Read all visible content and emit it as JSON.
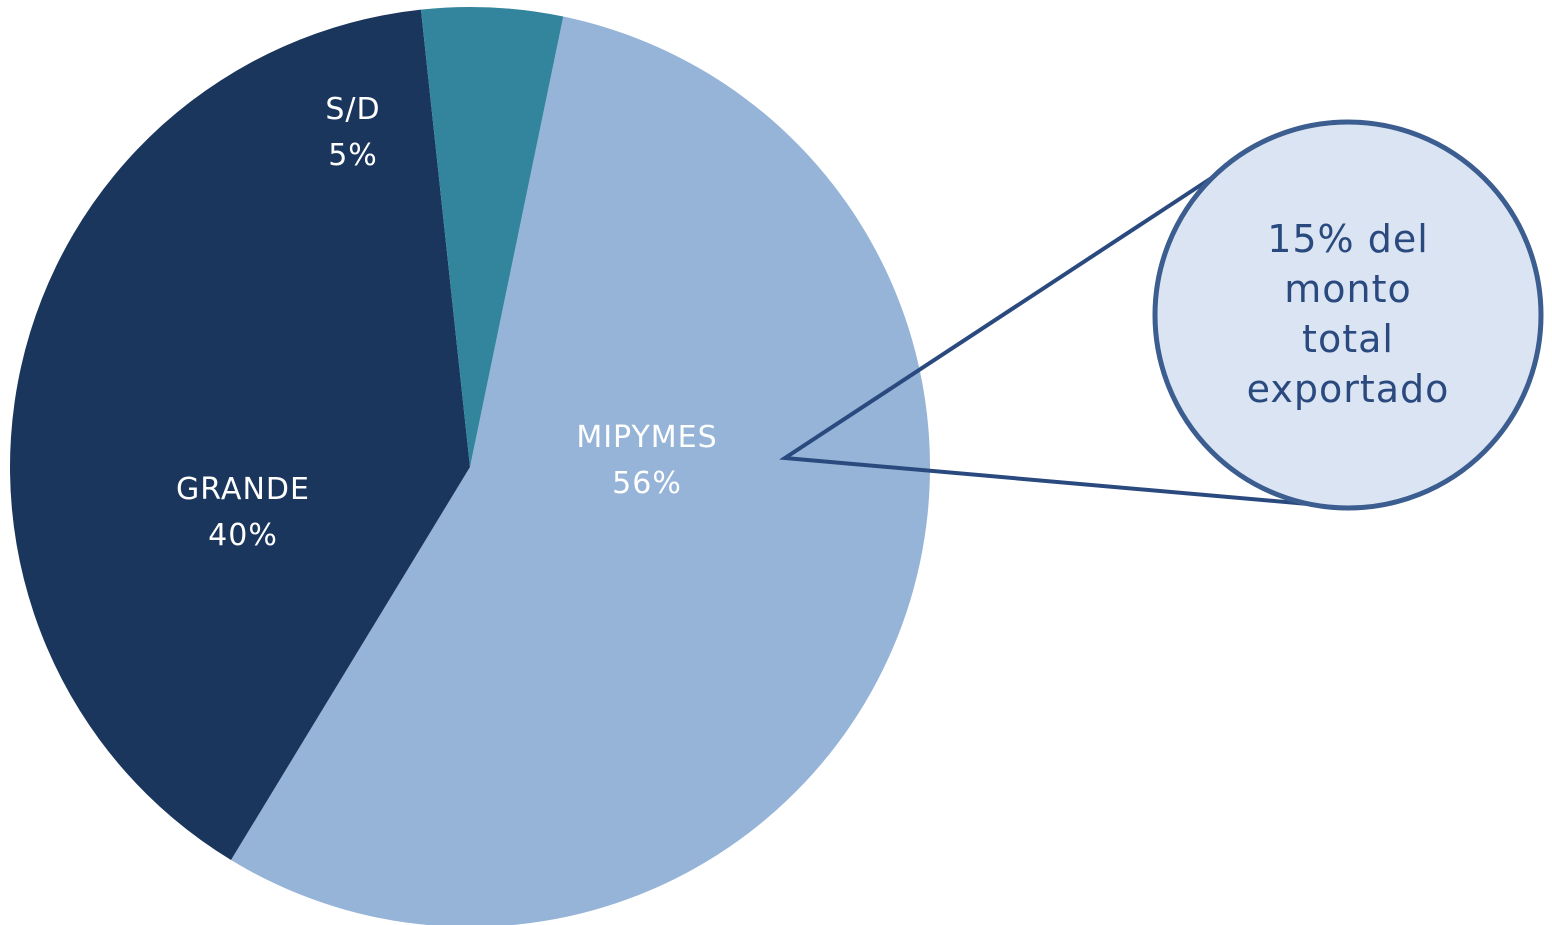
{
  "chart_data": {
    "type": "pie",
    "title": "",
    "slices": [
      {
        "label": "MIPYMES",
        "value": 56,
        "value_label": "56%",
        "color": "#96b4d7",
        "label_color": "#ffffff"
      },
      {
        "label": "GRANDE",
        "value": 40,
        "value_label": "40%",
        "color": "#1a365d",
        "label_color": "#ffffff"
      },
      {
        "label": "S/D",
        "value": 5,
        "value_label": "5%",
        "color": "#33849d",
        "label_color": "#ffffff"
      }
    ],
    "callout": {
      "target_slice": "MIPYMES",
      "lines": [
        "15% del",
        "monto",
        "total",
        "exportado"
      ],
      "fill_color": "#dae4f2",
      "border_color": "#3b5d8f",
      "text_color": "#2a4a7f"
    }
  }
}
